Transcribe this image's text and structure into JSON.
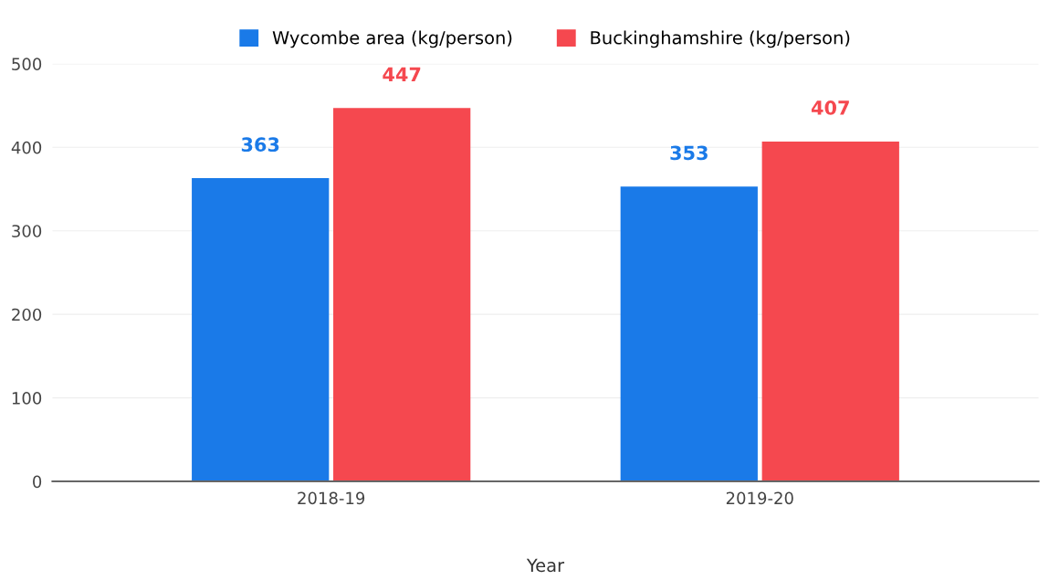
{
  "chart_data": {
    "type": "bar",
    "xlabel": "Year",
    "categories": [
      "2018-19",
      "2019-20"
    ],
    "series": [
      {
        "name": "Wycombe area (kg/person)",
        "color": "#1a7ae8",
        "values": [
          363,
          353
        ]
      },
      {
        "name": "Buckinghamshire (kg/person)",
        "color": "#f5484f",
        "values": [
          447,
          407
        ]
      }
    ],
    "ylim": [
      0,
      500
    ],
    "yticks": [
      0,
      100,
      200,
      300,
      400,
      500
    ],
    "grid": "y",
    "legend": "top",
    "data_labels": true
  }
}
